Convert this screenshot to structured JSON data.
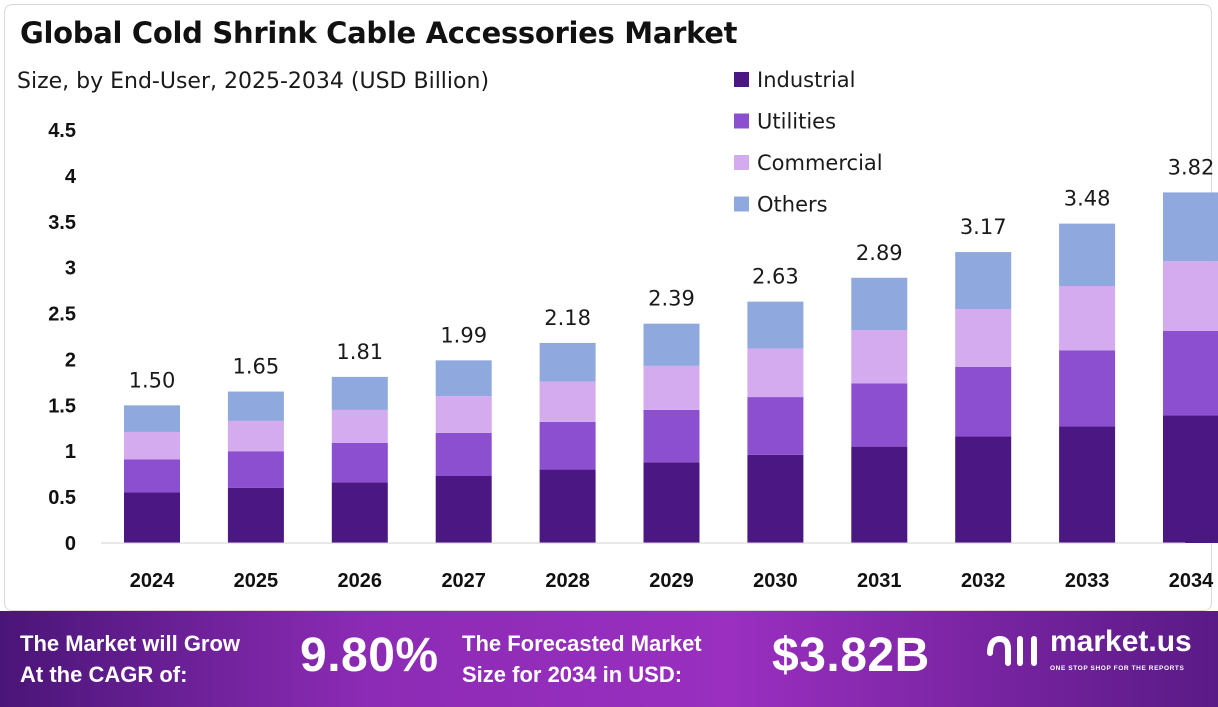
{
  "header": {
    "title": "Global Cold Shrink Cable Accessories Market",
    "subtitle": "Size, by End-User, 2025-2034 (USD Billion)"
  },
  "chart_data": {
    "type": "bar",
    "stacked": true,
    "categories": [
      "2024",
      "2025",
      "2026",
      "2027",
      "2028",
      "2029",
      "2030",
      "2031",
      "2032",
      "2033",
      "2034"
    ],
    "totals": [
      "1.50",
      "1.65",
      "1.81",
      "1.99",
      "2.18",
      "2.39",
      "2.63",
      "2.89",
      "3.17",
      "3.48",
      "3.82"
    ],
    "series": [
      {
        "name": "Industrial",
        "color": "#4b1883",
        "values": [
          0.55,
          0.6,
          0.66,
          0.73,
          0.8,
          0.88,
          0.96,
          1.05,
          1.16,
          1.27,
          1.39
        ]
      },
      {
        "name": "Utilities",
        "color": "#8c4fd0",
        "values": [
          0.36,
          0.4,
          0.43,
          0.47,
          0.52,
          0.57,
          0.63,
          0.69,
          0.76,
          0.83,
          0.92
        ]
      },
      {
        "name": "Commercial",
        "color": "#d3abee",
        "values": [
          0.3,
          0.33,
          0.36,
          0.4,
          0.44,
          0.48,
          0.53,
          0.58,
          0.63,
          0.7,
          0.76
        ]
      },
      {
        "name": "Others",
        "color": "#8fa8de",
        "values": [
          0.29,
          0.32,
          0.36,
          0.39,
          0.42,
          0.46,
          0.51,
          0.57,
          0.62,
          0.68,
          0.75
        ]
      }
    ],
    "yticks": [
      "0",
      "0.5",
      "1",
      "1.5",
      "2",
      "2.5",
      "3",
      "3.5",
      "4",
      "4.5"
    ],
    "ylim": [
      0,
      4.5
    ],
    "grid": false,
    "legend_position": "top-right"
  },
  "footer": {
    "cagr_label_line1": "The Market will Grow",
    "cagr_label_line2": "At the CAGR of:",
    "cagr_value": "9.80%",
    "forecast_label_line1": "The Forecasted Market",
    "forecast_label_line2": "Size for 2034 in USD:",
    "forecast_value": "$3.82B",
    "brand_name": "market.us",
    "brand_tagline": "ONE STOP SHOP FOR THE REPORTS"
  }
}
